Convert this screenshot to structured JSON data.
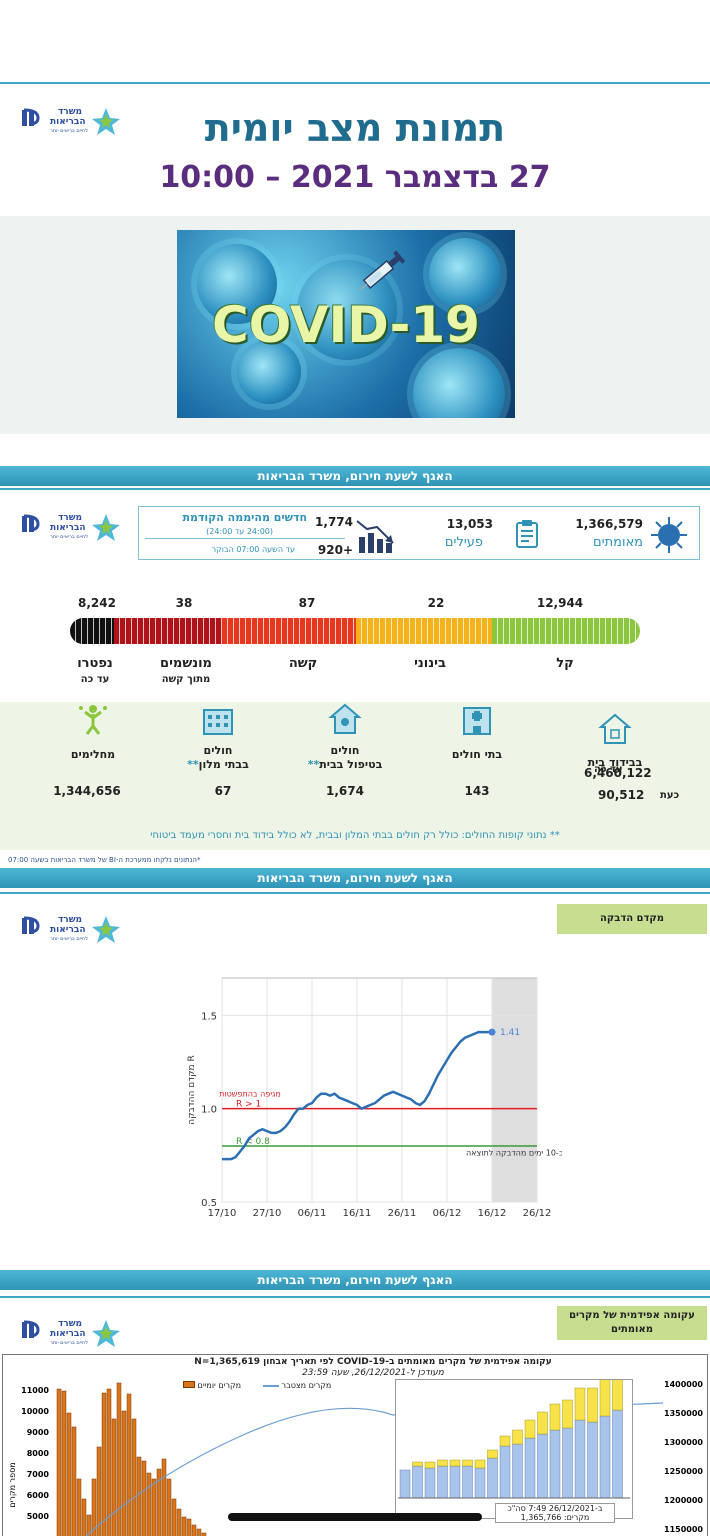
{
  "slide1": {
    "title": "תמונת מצב יומית",
    "date": "27 בדצמבר 2021 – 10:00",
    "hero_text": "COVID-19"
  },
  "band_text": "האגף לשעת חירום, משרד הבריאות",
  "logo": {
    "line1": "משרד",
    "line2": "הבריאות",
    "tagline": "לחיים בריאים יותר"
  },
  "slide2": {
    "confirmed": {
      "value": "1,366,579",
      "label": "מאומתים"
    },
    "active": {
      "value": "13,053",
      "label": "פעילים"
    },
    "new_since": {
      "title": "חדשים מהיממה הקודמת",
      "title_sub": "(24:00 עד 24:00)",
      "value": "1,774",
      "since_label": "עד השעה 07:00 הבוקר",
      "since_value": "+920"
    },
    "severity": {
      "mild": {
        "value": "12,944",
        "label": "קל"
      },
      "moderate": {
        "value": "22",
        "label": "בינוני"
      },
      "severe": {
        "value": "87",
        "label": "קשה"
      },
      "ventilated": {
        "value": "38",
        "label": "מונשמים",
        "sub": "מתוך קשה"
      },
      "deceased": {
        "value": "8,242",
        "label": "נפטרו",
        "sub": "עד כה"
      }
    },
    "locations": {
      "home_isolation": {
        "label": "בבידוד בית",
        "total_label": "עד כה",
        "total_value": "6,460,122",
        "now_label": "כעת",
        "now_value": "90,512"
      },
      "hospitals": {
        "label": "בתי חולים",
        "value": "143"
      },
      "home_care": {
        "label1": "חולים",
        "label2": "בטיפול בבית",
        "star": "**",
        "value": "1,674"
      },
      "hotels": {
        "label1": "חולים",
        "label2": "בבתי מלון",
        "star": "**",
        "value": "67"
      },
      "recovered": {
        "label": "מחלימים",
        "value": "1,344,656"
      }
    },
    "footnote": "** נתוני קופות החולים: כולל רק חולים בבתי המלון ובבית, לא כולל בידוד בית וחסרי מעמד ביטוחי",
    "source_note": "*הנתונים נלקחו ממערכת ה-BI של משרד הבריאות בשעה 07:00"
  },
  "slide3": {
    "tag": "מקדם הדבקה",
    "chart_data": {
      "type": "line",
      "ylabel": "מקדם ההדבקה R",
      "ylim": [
        0.5,
        1.7
      ],
      "yticks": [
        0.5,
        1.0,
        1.5
      ],
      "xticks": [
        "17/10",
        "27/10",
        "06/11",
        "16/11",
        "26/11",
        "06/12",
        "16/12",
        "26/12"
      ],
      "series": [
        {
          "x": [
            0,
            1,
            2,
            3,
            4,
            5,
            6,
            7,
            8,
            9,
            10,
            11,
            12,
            13,
            14,
            15,
            16,
            17,
            18,
            19,
            20,
            21,
            22,
            23,
            24,
            25,
            26,
            27,
            28,
            29,
            30,
            31,
            32,
            33,
            34,
            35,
            36,
            37,
            38,
            39,
            40,
            41,
            42,
            43,
            44,
            45,
            46,
            47,
            48,
            49,
            50,
            51,
            52,
            53,
            54,
            55,
            56,
            57,
            58,
            59,
            60
          ],
          "y": [
            0.73,
            0.73,
            0.73,
            0.74,
            0.77,
            0.8,
            0.84,
            0.86,
            0.88,
            0.89,
            0.88,
            0.87,
            0.87,
            0.88,
            0.9,
            0.93,
            0.97,
            1.0,
            1.0,
            1.02,
            1.03,
            1.06,
            1.08,
            1.08,
            1.07,
            1.08,
            1.06,
            1.05,
            1.04,
            1.03,
            1.02,
            1.0,
            1.01,
            1.02,
            1.03,
            1.05,
            1.07,
            1.08,
            1.09,
            1.08,
            1.07,
            1.06,
            1.05,
            1.03,
            1.02,
            1.04,
            1.08,
            1.13,
            1.18,
            1.22,
            1.26,
            1.3,
            1.33,
            1.36,
            1.38,
            1.39,
            1.4,
            1.41,
            1.41,
            1.41,
            1.41
          ]
        }
      ],
      "end_label": "1.41",
      "hlines": [
        {
          "y": 1.0,
          "color": "#e11b22",
          "label": "R > 1",
          "label2": "מגיפה בהתפשטות"
        },
        {
          "y": 0.8,
          "color": "#3a9a3a",
          "label": "R < 0.8"
        }
      ],
      "shaded_note": "כ-10 ימים מהדבקה לתוצאה"
    }
  },
  "slide4": {
    "tag": "עקומה אפידמית של מקרים מאומתים",
    "epi_title": "עקומה אפידמית של מקרים מאומתים ב-COVID-19 לפי תאריך אבחון",
    "n_label": "N=1,365,619",
    "epi_sub": "מעודכן ל-26/12/2021, שעה 23:59",
    "legend_daily": "מקרים יומיים",
    "legend_cumulative": "מקרים מצטבר",
    "ylabel": "מספר מקרים",
    "left_ticks": [
      "11000",
      "10000",
      "9000",
      "8000",
      "7000",
      "6000",
      "5000"
    ],
    "right_ticks": [
      "1400000",
      "1350000",
      "1300000",
      "1250000",
      "1200000",
      "1150000"
    ],
    "inset_note": "ב-26/12/2021 7:49 סה\"כ מקרים: 1,365,766"
  },
  "colors": {
    "accent": "#2f93b5",
    "title_blue": "#1f6c8e",
    "date_purple": "#5b2d7e",
    "sev_mild": "#8cc63f",
    "sev_moderate": "#f5b21b",
    "sev_severe": "#e8371f",
    "sev_ventilated": "#b0141a",
    "sev_deceased": "#111111"
  }
}
